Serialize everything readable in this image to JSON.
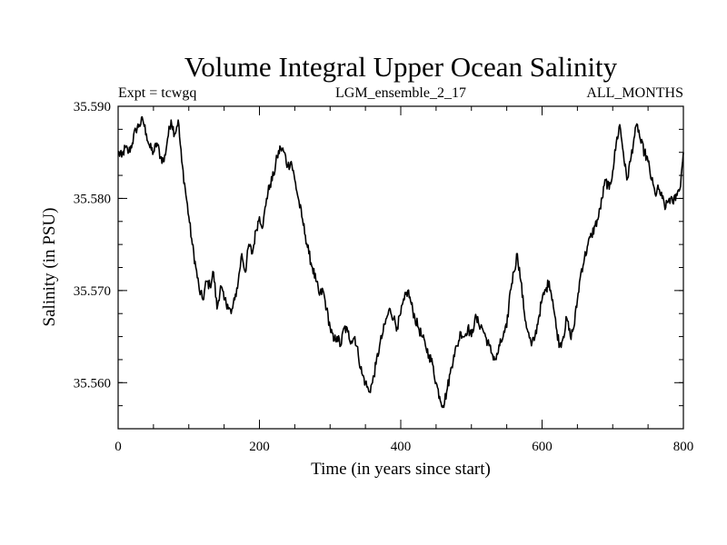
{
  "chart_data": {
    "type": "line",
    "title": "Volume Integral Upper Ocean Salinity",
    "subtitle_left": "Expt = tcwgq",
    "subtitle_center": "LGM_ensemble_2_17",
    "subtitle_right": "ALL_MONTHS",
    "xlabel": "Time (in years since start)",
    "ylabel": "Salinity (in PSU)",
    "xlim": [
      0,
      800
    ],
    "ylim": [
      35.555,
      35.59
    ],
    "xticks": [
      0,
      200,
      400,
      600,
      800
    ],
    "xtick_labels": [
      "0",
      "200",
      "400",
      "600",
      "800"
    ],
    "yticks": [
      35.56,
      35.57,
      35.58,
      35.59
    ],
    "ytick_labels": [
      "35.560",
      "35.570",
      "35.580",
      "35.590"
    ],
    "x_minor_step": 50,
    "y_minor_step": 0.0025,
    "grid": false,
    "series": [
      {
        "name": "salinity",
        "x": [
          0,
          5,
          10,
          15,
          20,
          25,
          30,
          35,
          40,
          45,
          50,
          55,
          60,
          65,
          70,
          75,
          80,
          85,
          90,
          95,
          100,
          105,
          110,
          115,
          120,
          125,
          130,
          135,
          140,
          145,
          150,
          155,
          160,
          165,
          170,
          175,
          180,
          185,
          190,
          195,
          200,
          205,
          210,
          215,
          220,
          225,
          230,
          235,
          240,
          245,
          250,
          255,
          260,
          265,
          270,
          275,
          280,
          285,
          290,
          295,
          300,
          305,
          310,
          315,
          320,
          325,
          330,
          335,
          340,
          345,
          350,
          355,
          360,
          365,
          370,
          375,
          380,
          385,
          390,
          395,
          400,
          405,
          410,
          415,
          420,
          425,
          430,
          435,
          440,
          445,
          450,
          455,
          460,
          465,
          470,
          475,
          480,
          485,
          490,
          495,
          500,
          505,
          510,
          515,
          520,
          525,
          530,
          535,
          540,
          545,
          550,
          555,
          560,
          565,
          570,
          575,
          580,
          585,
          590,
          595,
          600,
          605,
          610,
          615,
          620,
          625,
          630,
          635,
          640,
          645,
          650,
          655,
          660,
          665,
          670,
          675,
          680,
          685,
          690,
          695,
          700,
          705,
          710,
          715,
          720,
          725,
          730,
          735,
          740,
          745,
          750,
          755,
          760,
          765,
          770,
          775,
          780,
          785,
          790,
          795,
          800
        ],
        "values": [
          35.585,
          35.5845,
          35.5855,
          35.585,
          35.586,
          35.5875,
          35.588,
          35.5885,
          35.587,
          35.5855,
          35.585,
          35.586,
          35.5845,
          35.584,
          35.5865,
          35.5885,
          35.587,
          35.5885,
          35.584,
          35.581,
          35.578,
          35.575,
          35.5725,
          35.57,
          35.569,
          35.571,
          35.5705,
          35.572,
          35.568,
          35.5705,
          35.569,
          35.5685,
          35.5675,
          35.569,
          35.571,
          35.574,
          35.572,
          35.575,
          35.574,
          35.5765,
          35.578,
          35.577,
          35.58,
          35.5815,
          35.5825,
          35.5845,
          35.5855,
          35.585,
          35.5835,
          35.584,
          35.582,
          35.58,
          35.578,
          35.576,
          35.574,
          35.5725,
          35.571,
          35.5695,
          35.57,
          35.568,
          35.566,
          35.5645,
          35.565,
          35.564,
          35.566,
          35.5655,
          35.5645,
          35.565,
          35.563,
          35.561,
          35.56,
          35.559,
          35.56,
          35.562,
          35.564,
          35.5655,
          35.567,
          35.568,
          35.567,
          35.566,
          35.5675,
          35.569,
          35.57,
          35.5685,
          35.567,
          35.566,
          35.565,
          35.564,
          35.563,
          35.562,
          35.56,
          35.5585,
          35.5575,
          35.559,
          35.561,
          35.563,
          35.564,
          35.5655,
          35.565,
          35.566,
          35.565,
          35.567,
          35.5665,
          35.566,
          35.565,
          35.564,
          35.563,
          35.5625,
          35.564,
          35.565,
          35.566,
          35.57,
          35.572,
          35.574,
          35.571,
          35.5675,
          35.5655,
          35.564,
          35.565,
          35.567,
          35.569,
          35.57,
          35.571,
          35.569,
          35.566,
          35.564,
          35.565,
          35.567,
          35.565,
          35.566,
          35.569,
          35.572,
          35.5735,
          35.575,
          35.576,
          35.577,
          35.578,
          35.58,
          35.582,
          35.581,
          35.583,
          35.586,
          35.588,
          35.585,
          35.582,
          35.584,
          35.5865,
          35.588,
          35.586,
          35.585,
          35.584,
          35.582,
          35.5805,
          35.581,
          35.58,
          35.579,
          35.58,
          35.5795,
          35.5805,
          35.581,
          35.585
        ]
      }
    ]
  }
}
